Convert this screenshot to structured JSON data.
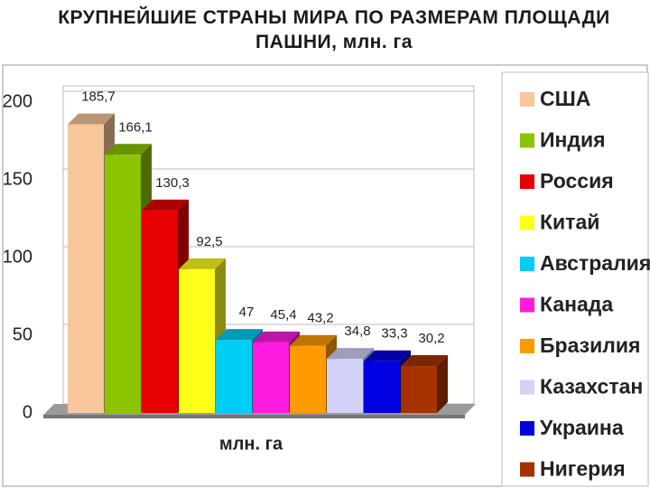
{
  "chart_data": {
    "type": "bar3d",
    "title": "КРУПНЕЙШИЕ СТРАНЫ МИРА ПО РАЗМЕРАМ ПЛОЩАДИ ПАШНИ, млн. га",
    "x_label": "млн. га",
    "categories": [
      "США",
      "Индия",
      "Россия",
      "Китай",
      "Австралия",
      "Канада",
      "Бразилия",
      "Казахстан",
      "Украина",
      "Нигерия"
    ],
    "values": [
      185.7,
      166.1,
      130.3,
      92.5,
      47,
      45.4,
      43.2,
      34.8,
      33.3,
      30.2
    ],
    "value_labels": [
      "185,7",
      "166,1",
      "130,3",
      "92,5",
      "47",
      "45,4",
      "43,2",
      "34,8",
      "33,3",
      "30,2"
    ],
    "colors": [
      "#f8c79c",
      "#8cc400",
      "#e60000",
      "#ffff1a",
      "#00cdf5",
      "#ff1ae0",
      "#ff9a00",
      "#d2d2f8",
      "#0000e0",
      "#a63200"
    ],
    "ylim": [
      0,
      200
    ],
    "yticks": [
      0,
      50,
      100,
      150,
      200
    ],
    "grid": true
  }
}
